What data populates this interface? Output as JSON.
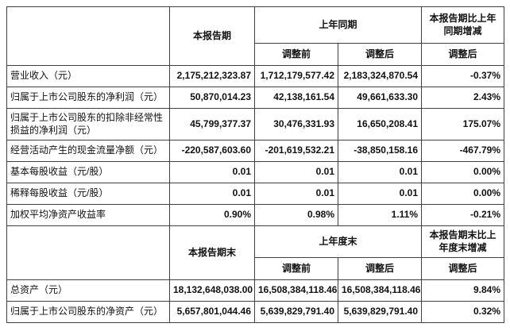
{
  "section1": {
    "header": {
      "current": "本报告期",
      "prior": "上年同期",
      "change": "本报告期比上年同期增减",
      "sub_before": "调整前",
      "sub_after": "调整后",
      "sub_change": "调整后"
    },
    "rows": [
      {
        "label": "营业收入（元）",
        "current": "2,175,212,323.87",
        "before": "1,712,179,577.42",
        "after": "2,183,324,870.54",
        "change": "-0.37%"
      },
      {
        "label": "归属于上市公司股东的净利润（元）",
        "current": "50,870,014.23",
        "before": "42,138,161.54",
        "after": "49,661,633.30",
        "change": "2.43%"
      },
      {
        "label": "归属于上市公司股东的扣除非经常性损益的净利润（元）",
        "current": "45,799,377.37",
        "before": "30,476,331.93",
        "after": "16,650,208.41",
        "change": "175.07%"
      },
      {
        "label": "经营活动产生的现金流量净额（元）",
        "current": "-220,587,603.60",
        "before": "-201,619,532.21",
        "after": "-38,850,158.16",
        "change": "-467.79%"
      },
      {
        "label": "基本每股收益（元/股）",
        "current": "0.01",
        "before": "0.01",
        "after": "0.01",
        "change": "0.00%"
      },
      {
        "label": "稀释每股收益（元/股）",
        "current": "0.01",
        "before": "0.01",
        "after": "0.01",
        "change": "0.00%"
      },
      {
        "label": "加权平均净资产收益率",
        "current": "0.90%",
        "before": "0.98%",
        "after": "1.11%",
        "change": "-0.21%"
      }
    ]
  },
  "section2": {
    "header": {
      "current": "本报告期末",
      "prior": "上年度末",
      "change": "本报告期末比上年度末增减",
      "sub_before": "调整前",
      "sub_after": "调整后",
      "sub_change": "调整后"
    },
    "rows": [
      {
        "label": "总资产（元）",
        "current": "18,132,648,038.00",
        "before": "16,508,384,118.46",
        "after": "16,508,384,118.46",
        "change": "9.84%"
      },
      {
        "label": "归属于上市公司股东的净资产（元）",
        "current": "5,657,801,044.46",
        "before": "5,639,829,791.40",
        "after": "5,639,829,791.40",
        "change": "0.32%"
      }
    ]
  }
}
